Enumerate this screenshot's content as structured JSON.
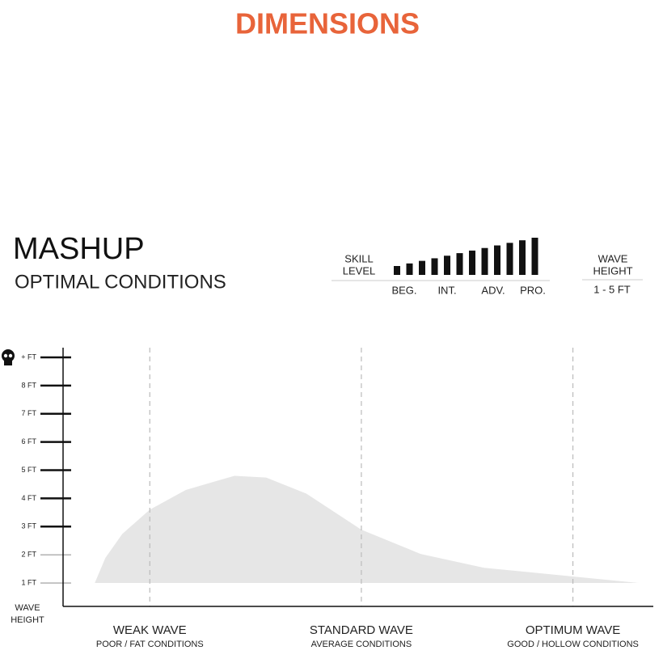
{
  "header": {
    "title": "DIMENSIONS"
  },
  "board": {
    "name": "MASHUP",
    "subtitle": "OPTIMAL CONDITIONS"
  },
  "skill": {
    "label": [
      "SKILL",
      "LEVEL"
    ],
    "levels": [
      "BEG.",
      "INT.",
      "ADV.",
      "PRO."
    ]
  },
  "wave_height": {
    "label": [
      "WAVE",
      "HEIGHT"
    ],
    "range": "1 - 5 FT"
  },
  "chart_data": {
    "type": "area",
    "y_label": [
      "WAVE",
      "HEIGHT"
    ],
    "x": [
      -0.26,
      -0.21,
      -0.13,
      0,
      0.17,
      0.4,
      0.55,
      0.74,
      1.0,
      1.28,
      1.58,
      2.0,
      2.31
    ],
    "values": [
      1.0,
      1.89,
      2.74,
      3.6,
      4.3,
      4.8,
      4.74,
      4.17,
      2.89,
      2.03,
      1.54,
      1.23,
      1.0
    ],
    "color": "#e6e6e6",
    "xlim": [
      -0.41,
      2.38
    ],
    "ylim": [
      0.17,
      9
    ],
    "yticks": [
      {
        "value": 1,
        "label": "1 FT"
      },
      {
        "value": 2,
        "label": "2 FT"
      },
      {
        "value": 3,
        "label": "3 FT"
      },
      {
        "value": 4,
        "label": "4 FT"
      },
      {
        "value": 5,
        "label": "5 FT"
      },
      {
        "value": 6,
        "label": "6 FT"
      },
      {
        "value": 7,
        "label": "7 FT"
      },
      {
        "value": 8,
        "label": "8 FT"
      },
      {
        "value": 9,
        "label": "+ FT"
      }
    ],
    "xticks": [
      {
        "value": 0,
        "label": "WEAK WAVE"
      },
      {
        "value": 1,
        "label": "STANDARD WAVE"
      },
      {
        "value": 2,
        "label": "OPTIMUM WAVE"
      }
    ],
    "x_sublabels": [
      "POOR / FAT CONDITIONS",
      "AVERAGE CONDITIONS",
      "GOOD / HOLLOW CONDITIONS"
    ],
    "grid": true
  }
}
